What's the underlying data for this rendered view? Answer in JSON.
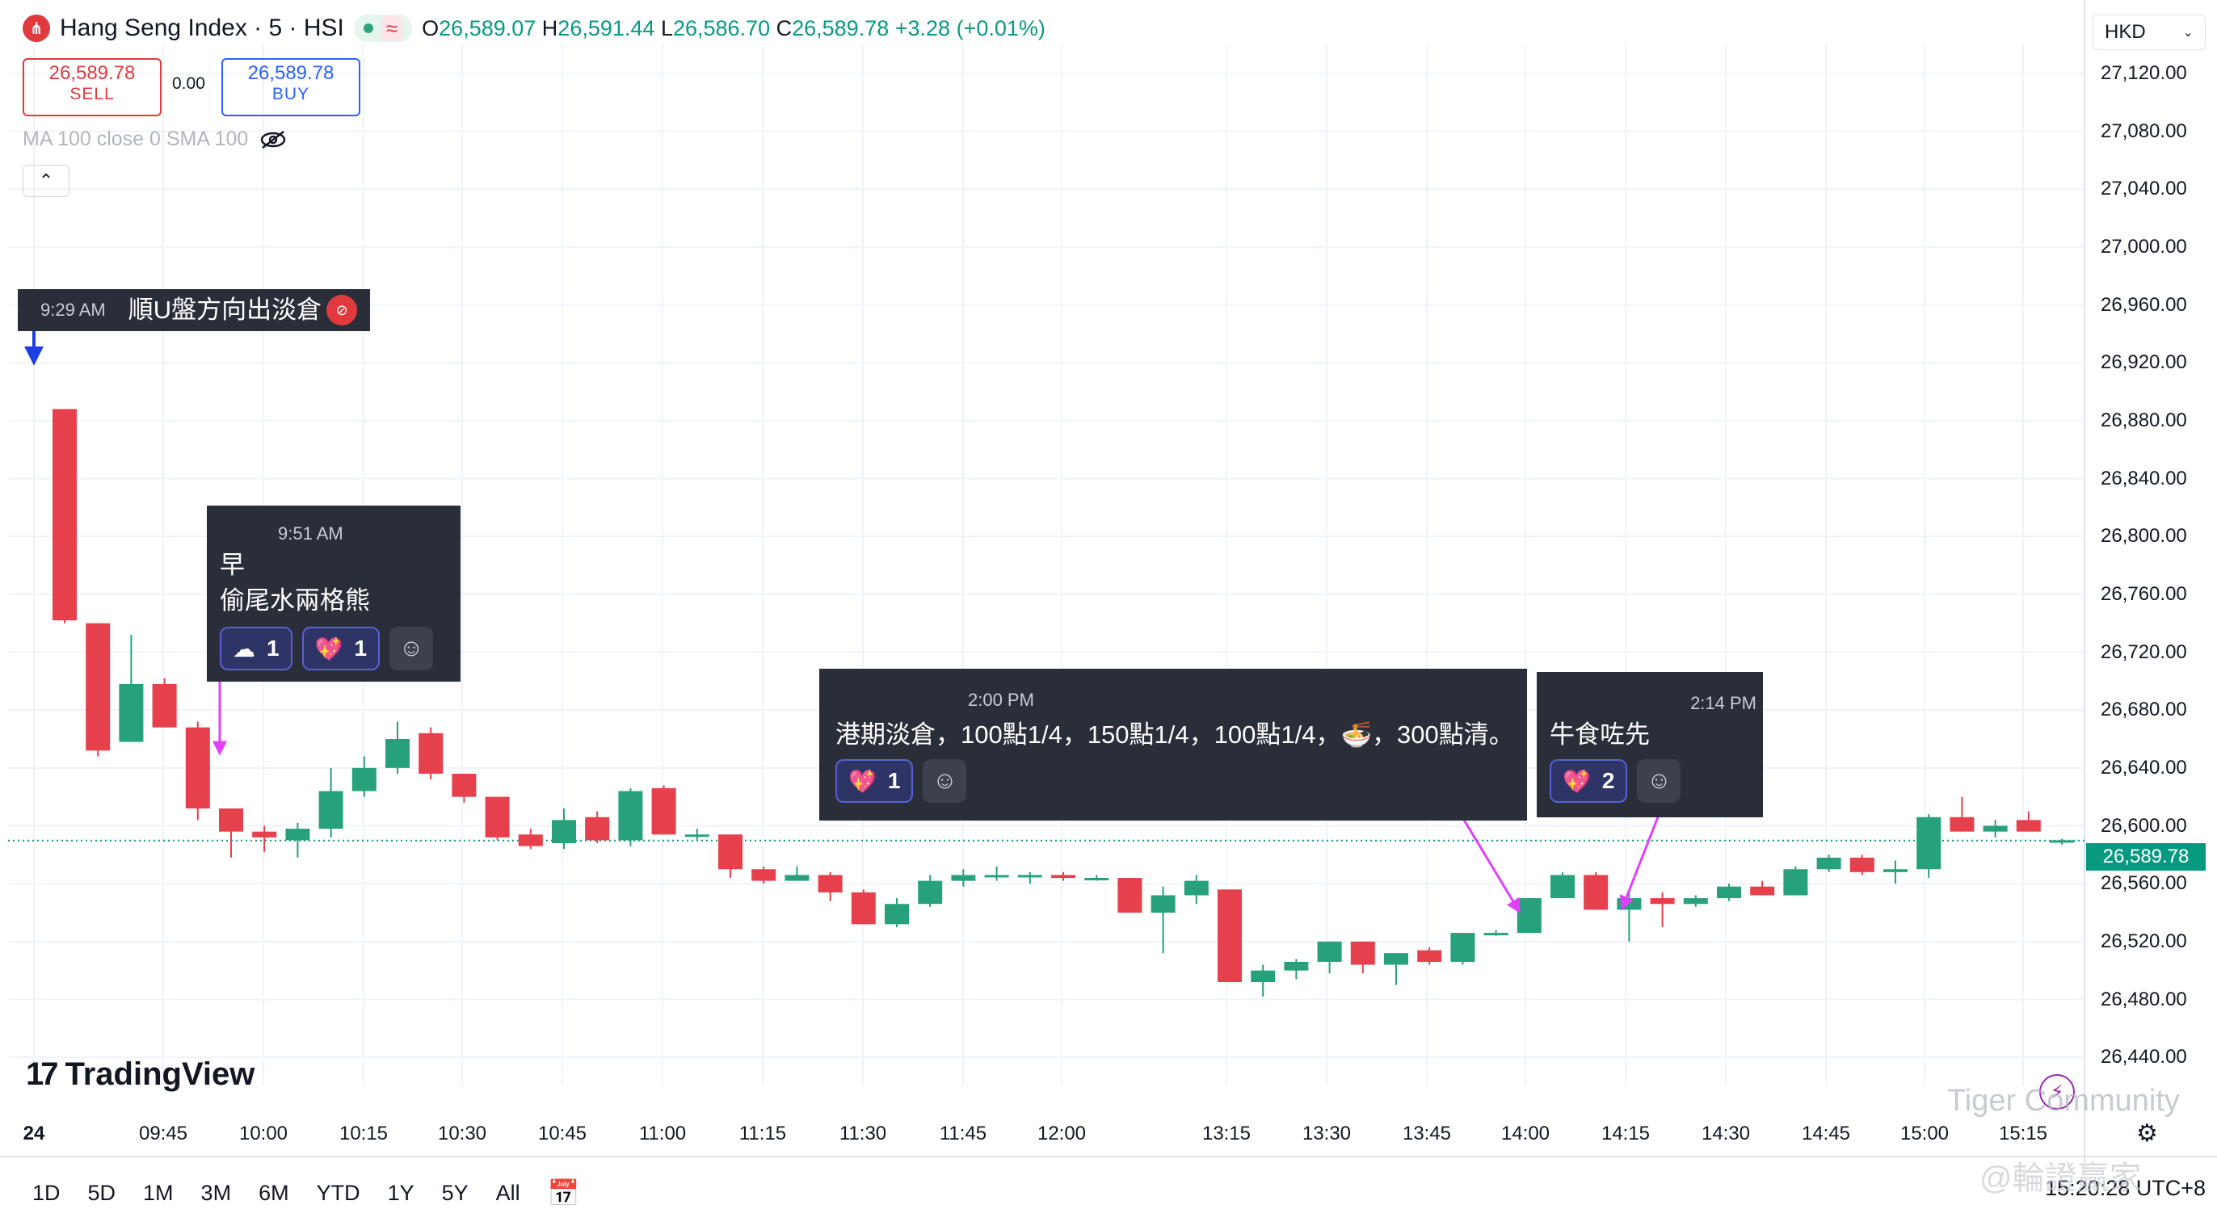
{
  "header": {
    "symbol_title": "Hang Seng Index · 5 · HSI",
    "status_wave": "≈",
    "o_label": "O",
    "o_value": "26,589.07",
    "h_label": "H",
    "h_value": "26,591.44",
    "l_label": "L",
    "l_value": "26,586.70",
    "c_label": "C",
    "c_value": "26,589.78",
    "change": "+3.28 (+0.01%)",
    "currency": "HKD"
  },
  "trade": {
    "sell_price": "26,589.78",
    "sell_label": "SELL",
    "spread": "0.00",
    "buy_price": "26,589.78",
    "buy_label": "BUY"
  },
  "indicator": {
    "label": "MA 100 close 0 SMA 100"
  },
  "notes": [
    {
      "time": "9:29 AM",
      "text": "順U盤方向出淡倉"
    },
    {
      "time": "9:51 AM",
      "line1": "早",
      "line2": "偷尾水兩格熊",
      "reactions": [
        {
          "emoji": "☁",
          "count": "1"
        },
        {
          "emoji": "💖",
          "count": "1"
        }
      ]
    },
    {
      "time": "2:00 PM",
      "text": "港期淡倉，100點1/4，150點1/4，100點1/4，🍜，300點清。",
      "reactions": [
        {
          "emoji": "💖",
          "count": "1"
        }
      ]
    },
    {
      "time": "2:14 PM",
      "text": "牛食咗先",
      "reactions": [
        {
          "emoji": "💖",
          "count": "2"
        }
      ]
    }
  ],
  "price_axis": [
    "27,120.00",
    "27,080.00",
    "27,040.00",
    "27,000.00",
    "26,960.00",
    "26,920.00",
    "26,880.00",
    "26,840.00",
    "26,800.00",
    "26,760.00",
    "26,720.00",
    "26,680.00",
    "26,640.00",
    "26,600.00",
    "26,560.00",
    "26,520.00",
    "26,480.00",
    "26,440.00"
  ],
  "current_price": "26,589.78",
  "time_axis": [
    "24",
    "09:45",
    "10:00",
    "10:15",
    "10:30",
    "10:45",
    "11:00",
    "11:15",
    "11:30",
    "11:45",
    "12:00",
    "13:15",
    "13:30",
    "13:45",
    "14:00",
    "14:15",
    "14:30",
    "14:45",
    "15:00",
    "15:15"
  ],
  "chart_data": {
    "type": "candlestick",
    "series": [
      {
        "name": "HSI 5m",
        "candles": [
          [
            26888,
            26888,
            26740,
            26742
          ],
          [
            26740,
            26740,
            26648,
            26652
          ],
          [
            26658,
            26732,
            26658,
            26698
          ],
          [
            26698,
            26702,
            26668,
            26668
          ],
          [
            26668,
            26672,
            26604,
            26612
          ],
          [
            26612,
            26612,
            26578,
            26596
          ],
          [
            26596,
            26600,
            26582,
            26592
          ],
          [
            26590,
            26602,
            26578,
            26598
          ],
          [
            26598,
            26640,
            26592,
            26624
          ],
          [
            26624,
            26648,
            26620,
            26640
          ],
          [
            26640,
            26672,
            26636,
            26660
          ],
          [
            26664,
            26668,
            26632,
            26636
          ],
          [
            26636,
            26636,
            26616,
            26620
          ],
          [
            26620,
            26620,
            26590,
            26592
          ],
          [
            26594,
            26598,
            26584,
            26586
          ],
          [
            26588,
            26612,
            26584,
            26604
          ],
          [
            26606,
            26610,
            26588,
            26590
          ],
          [
            26590,
            26626,
            26586,
            26624
          ],
          [
            26626,
            26628,
            26594,
            26594
          ],
          [
            26594,
            26598,
            26590,
            26594
          ],
          [
            26594,
            26594,
            26564,
            26570
          ],
          [
            26570,
            26572,
            26560,
            26562
          ],
          [
            26562,
            26572,
            26562,
            26566
          ],
          [
            26566,
            26568,
            26548,
            26554
          ],
          [
            26554,
            26556,
            26532,
            26532
          ],
          [
            26532,
            26550,
            26530,
            26546
          ],
          [
            26546,
            26566,
            26544,
            26562
          ],
          [
            26562,
            26570,
            26558,
            26566
          ],
          [
            26566,
            26572,
            26562,
            26566
          ],
          [
            26566,
            26568,
            26560,
            26566
          ],
          [
            26566,
            26568,
            26562,
            26564
          ],
          [
            26564,
            26566,
            26562,
            26564
          ],
          [
            26564,
            26564,
            26540,
            26540
          ],
          [
            26540,
            26558,
            26512,
            26552
          ],
          [
            26552,
            26566,
            26546,
            26562
          ],
          [
            26556,
            26556,
            26492,
            26492
          ],
          [
            26492,
            26504,
            26482,
            26500
          ],
          [
            26500,
            26508,
            26494,
            26506
          ],
          [
            26506,
            26520,
            26498,
            26520
          ],
          [
            26520,
            26520,
            26498,
            26504
          ],
          [
            26504,
            26512,
            26490,
            26512
          ],
          [
            26514,
            26516,
            26504,
            26506
          ],
          [
            26506,
            26526,
            26504,
            26526
          ],
          [
            26526,
            26528,
            26524,
            26526
          ],
          [
            26526,
            26550,
            26526,
            26550
          ],
          [
            26550,
            26568,
            26550,
            26566
          ],
          [
            26566,
            26568,
            26542,
            26542
          ],
          [
            26542,
            26556,
            26520,
            26550
          ],
          [
            26550,
            26554,
            26530,
            26546
          ],
          [
            26546,
            26552,
            26544,
            26550
          ],
          [
            26550,
            26560,
            26548,
            26558
          ],
          [
            26558,
            26562,
            26552,
            26552
          ],
          [
            26552,
            26572,
            26552,
            26570
          ],
          [
            26570,
            26580,
            26568,
            26578
          ],
          [
            26578,
            26580,
            26566,
            26568
          ],
          [
            26568,
            26576,
            26560,
            26570
          ],
          [
            26570,
            26608,
            26564,
            26606
          ],
          [
            26606,
            26620,
            26596,
            26596
          ],
          [
            26596,
            26604,
            26592,
            26600
          ],
          [
            26604,
            26610,
            26596,
            26596
          ],
          [
            26589,
            26591,
            26587,
            26590
          ]
        ]
      }
    ],
    "ylim": [
      26420,
      27130
    ]
  },
  "footer": {
    "ranges": [
      "1D",
      "5D",
      "1M",
      "3M",
      "6M",
      "YTD",
      "1Y",
      "5Y",
      "All"
    ],
    "clock": "15:20:28 UTC+8"
  },
  "branding": {
    "logo": "TradingView",
    "watermark1": "Tiger Community",
    "watermark2": "@輪證贏家"
  }
}
